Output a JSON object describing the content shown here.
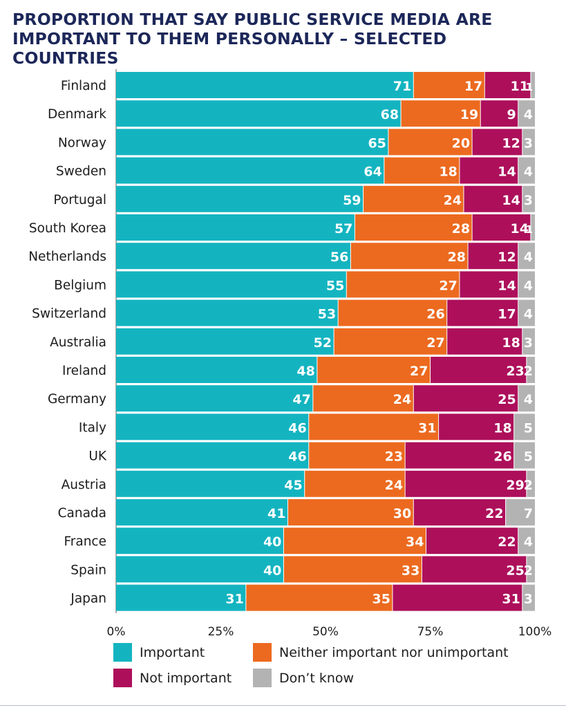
{
  "title_line1": "PROPORTION THAT SAY PUBLIC SERVICE MEDIA ARE",
  "title_line2": "IMPORTANT TO THEM PERSONALLY – SELECTED COUNTRIES",
  "colors": {
    "important": "#13b4c0",
    "neither": "#ec6a1f",
    "not_important": "#ad0f5b",
    "dont_know": "#b3b3b3",
    "title": "#1c2759"
  },
  "chart_data": {
    "type": "bar",
    "orientation": "horizontal",
    "stacked": true,
    "title": "PROPORTION THAT SAY PUBLIC SERVICE MEDIA ARE IMPORTANT TO THEM PERSONALLY – SELECTED COUNTRIES",
    "categories": [
      "Finland",
      "Denmark",
      "Norway",
      "Sweden",
      "Portugal",
      "South Korea",
      "Netherlands",
      "Belgium",
      "Switzerland",
      "Australia",
      "Ireland",
      "Germany",
      "Italy",
      "UK",
      "Austria",
      "Canada",
      "France",
      "Spain",
      "Japan"
    ],
    "series": [
      {
        "name": "Important",
        "values": [
          71,
          68,
          65,
          64,
          59,
          57,
          56,
          55,
          53,
          52,
          48,
          47,
          46,
          46,
          45,
          41,
          40,
          40,
          31
        ]
      },
      {
        "name": "Neither important nor unimportant",
        "values": [
          17,
          19,
          20,
          18,
          24,
          28,
          28,
          27,
          26,
          27,
          27,
          24,
          31,
          23,
          24,
          30,
          34,
          33,
          35
        ]
      },
      {
        "name": "Not important",
        "values": [
          11,
          9,
          12,
          14,
          14,
          14,
          12,
          14,
          17,
          18,
          23,
          25,
          18,
          26,
          29,
          22,
          22,
          25,
          31
        ]
      },
      {
        "name": "Don’t know",
        "values": [
          1,
          4,
          3,
          4,
          3,
          1,
          4,
          4,
          4,
          3,
          2,
          4,
          5,
          5,
          2,
          7,
          4,
          2,
          3
        ]
      }
    ],
    "xlim": [
      0,
      100
    ],
    "xticks": [
      "0%",
      "25%",
      "50%",
      "75%",
      "100%"
    ],
    "legend": {
      "placement": "bottom",
      "entries": [
        "Important",
        "Neither important nor unimportant",
        "Not important",
        "Don’t know"
      ]
    }
  }
}
